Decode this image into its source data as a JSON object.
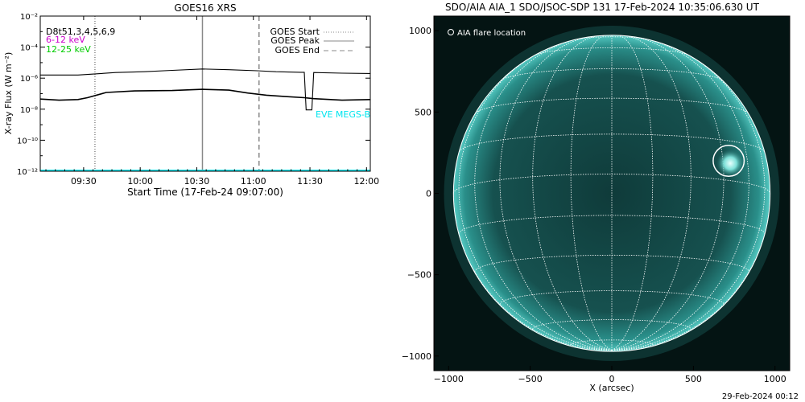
{
  "goes_panel": {
    "title": "GOES16 XRS",
    "xlabel": "Start Time (17-Feb-24 09:07:00)",
    "ylabel": "X-ray Flux (W m⁻²)",
    "dataset_labels": [
      {
        "text": "D8t51,3,4,5,6,9",
        "color": "#000000"
      },
      {
        "text": "6-12 keV",
        "color": "#cc00cc"
      },
      {
        "text": "12-25 keV",
        "color": "#00cc00"
      }
    ],
    "legend": [
      {
        "label": "GOES Start",
        "style": "dotted"
      },
      {
        "label": "GOES Peak",
        "style": "solid"
      },
      {
        "label": "GOES End",
        "style": "dashed"
      }
    ],
    "eve_label": "EVE MEGS-B",
    "eve_color": "#00e5ee"
  },
  "aia_panel": {
    "title": "SDO/AIA AIA_1 SDO/JSOC-SDP 131 17-Feb-2024 10:35:06.630 UT",
    "legend_label": "AIA flare location",
    "xlabel": "X (arcsec)",
    "disk_color": "#1f6f6b"
  },
  "footer": {
    "timestamp": "29-Feb-2024 00:12"
  },
  "chart_data": [
    {
      "type": "line",
      "title": "GOES16 XRS",
      "xlabel": "Start Time (17-Feb-24 09:07:00)",
      "ylabel": "X-ray Flux (W m⁻²)",
      "x_unit": "minutes after 09:07:00",
      "xlim": [
        0,
        175
      ],
      "ylim_log10": [
        -12,
        -2
      ],
      "yscale": "log",
      "x_ticks": [
        {
          "t": 23,
          "label": "09:30"
        },
        {
          "t": 53,
          "label": "10:00"
        },
        {
          "t": 83,
          "label": "10:30"
        },
        {
          "t": 113,
          "label": "11:00"
        },
        {
          "t": 143,
          "label": "11:30"
        },
        {
          "t": 173,
          "label": "12:00"
        }
      ],
      "y_ticks": [
        {
          "exp": -2,
          "label": "10⁻²"
        },
        {
          "exp": -4,
          "label": "10⁻⁴"
        },
        {
          "exp": -6,
          "label": "10⁻⁶"
        },
        {
          "exp": -8,
          "label": "10⁻⁸"
        },
        {
          "exp": -10,
          "label": "10⁻¹⁰"
        },
        {
          "exp": -12,
          "label": "10⁻¹²"
        }
      ],
      "event_lines": {
        "start": 29,
        "peak": 86,
        "end": 116
      },
      "series": [
        {
          "name": "D8t51,3,4,5,6,9",
          "color": "#000000",
          "points": [
            [
              0,
              1.6e-06
            ],
            [
              20,
              1.6e-06
            ],
            [
              30,
              1.9e-06
            ],
            [
              40,
              2.3e-06
            ],
            [
              55,
              2.6e-06
            ],
            [
              70,
              3.2e-06
            ],
            [
              86,
              3.9e-06
            ],
            [
              100,
              3.5e-06
            ],
            [
              115,
              3e-06
            ],
            [
              125,
              2.6e-06
            ],
            [
              138,
              2.4e-06
            ],
            [
              140,
              2.4e-06
            ],
            [
              141,
              9e-09
            ],
            [
              144,
              9e-09
            ],
            [
              145,
              2.3e-06
            ],
            [
              160,
              2.1e-06
            ],
            [
              175,
              2e-06
            ]
          ]
        },
        {
          "name": "",
          "color": "#000000",
          "points": [
            [
              0,
              4.5e-08
            ],
            [
              10,
              3.8e-08
            ],
            [
              20,
              4.2e-08
            ],
            [
              25,
              5.5e-08
            ],
            [
              35,
              1.2e-07
            ],
            [
              50,
              1.5e-07
            ],
            [
              70,
              1.6e-07
            ],
            [
              86,
              1.9e-07
            ],
            [
              100,
              1.7e-07
            ],
            [
              110,
              1.1e-07
            ],
            [
              120,
              8e-08
            ],
            [
              130,
              6.5e-08
            ],
            [
              140,
              5.5e-08
            ],
            [
              145,
              4.8e-08
            ],
            [
              160,
              3.8e-08
            ],
            [
              175,
              4.2e-08
            ]
          ]
        },
        {
          "name": "EVE MEGS-B",
          "color": "#00e5ee",
          "points": [
            [
              0,
              1.1e-12
            ],
            [
              175,
              1.1e-12
            ]
          ]
        }
      ]
    },
    {
      "type": "scatter",
      "title": "SDO/AIA AIA_1 SDO/JSOC-SDP 131 17-Feb-2024 10:35:06.630 UT",
      "xlabel": "X (arcsec)",
      "ylabel": "",
      "xlim": [
        -1090,
        1090
      ],
      "ylim": [
        -1090,
        1090
      ],
      "x_ticks": [
        -1000,
        -500,
        0,
        500,
        1000
      ],
      "y_ticks": [
        -1000,
        -500,
        0,
        500,
        1000
      ],
      "solar_radius_arcsec": 970,
      "flare_location": {
        "x": 716,
        "y": 200,
        "radius": 95
      },
      "grid": true
    }
  ]
}
